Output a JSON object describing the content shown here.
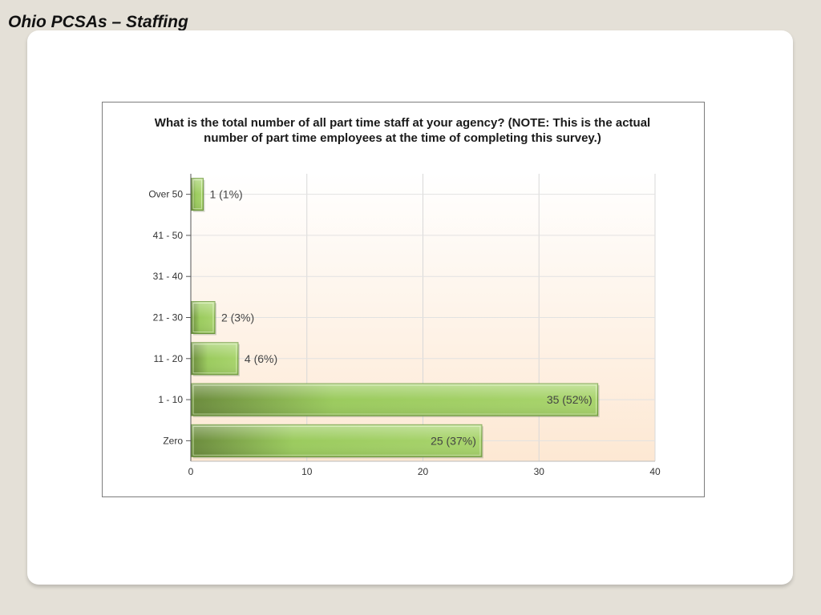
{
  "slide": {
    "title": "Ohio PCSAs – Staffing"
  },
  "chart_data": {
    "type": "bar",
    "orientation": "horizontal",
    "title": "What is the total number of all part time staff at your agency? (NOTE: This is the actual number of part time employees at the time of completing this survey.)",
    "categories": [
      "Over 50",
      "41 - 50",
      "31 - 40",
      "21 - 30",
      "11 - 20",
      "1 - 10",
      "Zero"
    ],
    "values": [
      1,
      0,
      0,
      2,
      4,
      35,
      25
    ],
    "data_labels": [
      "1 (1%)",
      "",
      "",
      "2 (3%)",
      "4 (6%)",
      "35 (52%)",
      "25 (37%)"
    ],
    "xlim": [
      0,
      40
    ],
    "xticks": [
      0,
      10,
      20,
      30,
      40
    ],
    "xlabel": "",
    "ylabel": "",
    "grid": true,
    "bar_color": "#8cc152",
    "plot_background": "#fdebd9"
  }
}
